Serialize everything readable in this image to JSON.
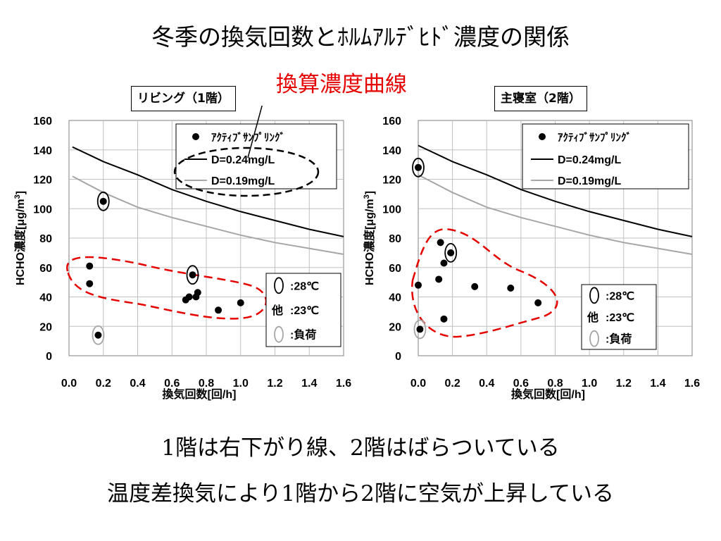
{
  "slide": {
    "title": "冬季の換気回数とﾎﾙﾑｱﾙﾃﾞﾋﾄﾞ濃度の関係",
    "callout": "換算濃度曲線",
    "conclusion_1": "1階は右下がり線、2階はばらついている",
    "conclusion_2": "温度差換気により1階から2階に空気が上昇している"
  },
  "colors": {
    "callout": "#e60000",
    "dashed_region": "#e60000",
    "curve_high": "#000000",
    "curve_low": "#a6a6a6",
    "grid": "#c0c0c0",
    "points": "#000000",
    "load_ring": "#a6a6a6"
  },
  "chart_data": [
    {
      "type": "scatter",
      "panel_label": "リビング（1階）",
      "xlabel": "換気回数[回/h]",
      "ylabel": "HCHO濃度[μg/m",
      "ylabel_sup": "3",
      "ylabel_end": "]",
      "xlim": [
        0,
        1.6
      ],
      "ylim": [
        0,
        160
      ],
      "xticks": [
        "0.0",
        "0.2",
        "0.4",
        "0.6",
        "0.8",
        "1.0",
        "1.2",
        "1.4",
        "1.6"
      ],
      "yticks": [
        "0",
        "20",
        "40",
        "60",
        "80",
        "100",
        "120",
        "140",
        "160"
      ],
      "grid": true,
      "legend": {
        "position": "top-right",
        "items": [
          "ｱｸﾃｨﾌﾞｻﾝﾌﾟﾘﾝｸﾞ",
          "D=0.24mg/L",
          "D=0.19mg/L"
        ]
      },
      "series": [
        {
          "name": "ｱｸﾃｨﾌﾞｻﾝﾌﾟﾘﾝｸﾞ",
          "kind": "points",
          "points": [
            {
              "x": 0.2,
              "y": 105,
              "mark": "28℃"
            },
            {
              "x": 0.12,
              "y": 61
            },
            {
              "x": 0.12,
              "y": 49
            },
            {
              "x": 0.72,
              "y": 55,
              "mark": "28℃"
            },
            {
              "x": 0.68,
              "y": 38
            },
            {
              "x": 0.7,
              "y": 40
            },
            {
              "x": 0.74,
              "y": 40
            },
            {
              "x": 0.75,
              "y": 43
            },
            {
              "x": 0.87,
              "y": 31
            },
            {
              "x": 1.0,
              "y": 36
            },
            {
              "x": 0.17,
              "y": 14,
              "mark": "負荷"
            }
          ]
        },
        {
          "name": "D=0.24mg/L",
          "kind": "curve",
          "points": [
            [
              0.02,
              142
            ],
            [
              0.2,
              132
            ],
            [
              0.4,
              123
            ],
            [
              0.6,
              113
            ],
            [
              0.8,
              105
            ],
            [
              1.0,
              98
            ],
            [
              1.2,
              92
            ],
            [
              1.4,
              86
            ],
            [
              1.6,
              81
            ]
          ]
        },
        {
          "name": "D=0.19mg/L",
          "kind": "curve",
          "points": [
            [
              0.02,
              122
            ],
            [
              0.2,
              111
            ],
            [
              0.4,
              101
            ],
            [
              0.6,
              94
            ],
            [
              0.8,
              88
            ],
            [
              1.0,
              82
            ],
            [
              1.2,
              77
            ],
            [
              1.4,
              73
            ],
            [
              1.6,
              69
            ]
          ]
        }
      ],
      "temp_legend": {
        "items": [
          ":28℃",
          ":23℃",
          ":負荷"
        ],
        "other": "他"
      }
    },
    {
      "type": "scatter",
      "panel_label": "主寝室（2階）",
      "xlabel": "換気回数[回/h]",
      "ylabel": "HCHO濃度[μg/m",
      "ylabel_sup": "3",
      "ylabel_end": "]",
      "xlim": [
        0,
        1.6
      ],
      "ylim": [
        0,
        160
      ],
      "xticks": [
        "0.0",
        "0.2",
        "0.4",
        "0.6",
        "0.8",
        "1.0",
        "1.2",
        "1.4",
        "1.6"
      ],
      "yticks": [
        "0",
        "20",
        "40",
        "60",
        "80",
        "100",
        "120",
        "140",
        "160"
      ],
      "grid": true,
      "legend": {
        "position": "top-right",
        "items": [
          "ｱｸﾃｨﾌﾞｻﾝﾌﾟﾘﾝｸﾞ",
          "D=0.24mg/L",
          "D=0.19mg/L"
        ]
      },
      "series": [
        {
          "name": "ｱｸﾃｨﾌﾞｻﾝﾌﾟﾘﾝｸﾞ",
          "kind": "points",
          "points": [
            {
              "x": 0.0,
              "y": 128,
              "mark": "28℃"
            },
            {
              "x": 0.13,
              "y": 77
            },
            {
              "x": 0.19,
              "y": 70,
              "mark": "28℃"
            },
            {
              "x": 0.15,
              "y": 63
            },
            {
              "x": 0.12,
              "y": 52
            },
            {
              "x": 0.0,
              "y": 48
            },
            {
              "x": 0.33,
              "y": 47
            },
            {
              "x": 0.54,
              "y": 46
            },
            {
              "x": 0.7,
              "y": 36
            },
            {
              "x": 0.15,
              "y": 25
            },
            {
              "x": 0.01,
              "y": 18,
              "mark": "負荷"
            }
          ]
        },
        {
          "name": "D=0.24mg/L",
          "kind": "curve",
          "points": [
            [
              0.0,
              143
            ],
            [
              0.2,
              132
            ],
            [
              0.4,
              123
            ],
            [
              0.6,
              113
            ],
            [
              0.8,
              105
            ],
            [
              1.0,
              98
            ],
            [
              1.2,
              92
            ],
            [
              1.4,
              86
            ],
            [
              1.6,
              81
            ]
          ]
        },
        {
          "name": "D=0.19mg/L",
          "kind": "curve",
          "points": [
            [
              0.0,
              123
            ],
            [
              0.2,
              111
            ],
            [
              0.4,
              101
            ],
            [
              0.6,
              94
            ],
            [
              0.8,
              88
            ],
            [
              1.0,
              82
            ],
            [
              1.2,
              77
            ],
            [
              1.4,
              73
            ],
            [
              1.6,
              69
            ]
          ]
        }
      ],
      "temp_legend": {
        "items": [
          ":28℃",
          ":23℃",
          ":負荷"
        ],
        "other": "他"
      }
    }
  ]
}
